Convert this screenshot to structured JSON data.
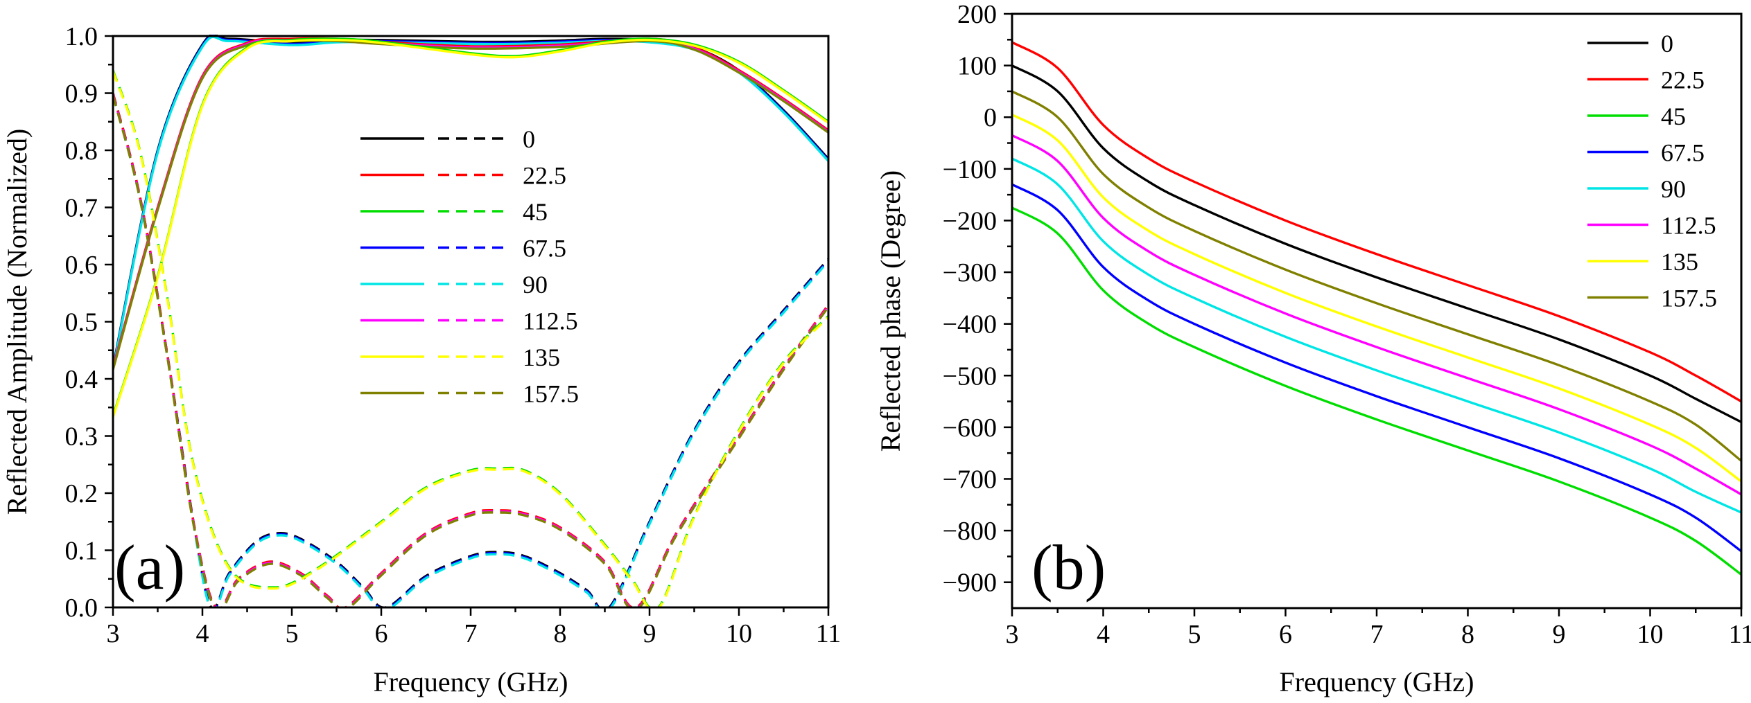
{
  "chart_data": [
    {
      "type": "line",
      "panel": "(a)",
      "xlabel": "Frequency (GHz)",
      "ylabel": "Reflected Amplitude (Normalized)",
      "xlim": [
        3,
        11
      ],
      "ylim": [
        0,
        1.0
      ],
      "x_ticks": [
        "3",
        "4",
        "5",
        "6",
        "7",
        "8",
        "9",
        "10",
        "11"
      ],
      "y_ticks": [
        "0.0",
        "0.1",
        "0.2",
        "0.3",
        "0.4",
        "0.5",
        "0.6",
        "0.7",
        "0.8",
        "0.9",
        "1.0"
      ],
      "legend": {
        "position": "center",
        "styles": [
          "solid",
          "dashed"
        ],
        "entries": [
          "0",
          "22.5",
          "45",
          "67.5",
          "90",
          "112.5",
          "135",
          "157.5"
        ]
      },
      "colors": [
        "#000000",
        "#ff0000",
        "#00dd00",
        "#0000ff",
        "#00e5e5",
        "#ff00ff",
        "#ffff00",
        "#808000"
      ],
      "series": [
        {
          "name": "solid group A (0, 67.5, 90)",
          "style": "solid",
          "colors": [
            "#000000",
            "#0000ff",
            "#00e5e5"
          ],
          "x": [
            3,
            3.5,
            4,
            4.3,
            5,
            5.5,
            6,
            7,
            7.5,
            8,
            8.5,
            9,
            9.5,
            10,
            10.5,
            11
          ],
          "y": [
            0.42,
            0.8,
            0.985,
            0.995,
            0.988,
            0.993,
            0.993,
            0.99,
            0.99,
            0.992,
            0.995,
            0.993,
            0.98,
            0.94,
            0.87,
            0.785
          ]
        },
        {
          "name": "solid group B (22.5, 112.5, 157.5)",
          "style": "solid",
          "colors": [
            "#ff0000",
            "#ff00ff",
            "#808000"
          ],
          "x": [
            3,
            3.5,
            4,
            4.5,
            5,
            5.5,
            6,
            7,
            8,
            9,
            9.5,
            10,
            10.5,
            11
          ],
          "y": [
            0.42,
            0.7,
            0.93,
            0.988,
            0.995,
            0.995,
            0.99,
            0.982,
            0.985,
            0.995,
            0.98,
            0.94,
            0.89,
            0.835
          ]
        },
        {
          "name": "solid group C (45, 135)",
          "style": "solid",
          "colors": [
            "#00dd00",
            "#ffff00"
          ],
          "x": [
            3,
            3.5,
            4,
            4.5,
            5,
            5.5,
            6,
            7,
            7.5,
            8,
            8.5,
            9,
            9.5,
            10,
            10.5,
            11
          ],
          "y": [
            0.335,
            0.58,
            0.88,
            0.98,
            0.993,
            0.995,
            0.99,
            0.97,
            0.965,
            0.975,
            0.99,
            0.995,
            0.985,
            0.955,
            0.905,
            0.85
          ]
        },
        {
          "name": "dashed group A (0, 67.5, 90)",
          "style": "dashed",
          "colors": [
            "#000000",
            "#0000ff",
            "#00e5e5"
          ],
          "x": [
            3,
            3.3,
            3.6,
            3.9,
            4.1,
            4.3,
            4.6,
            4.85,
            5.1,
            5.5,
            5.8,
            6.05,
            6.5,
            7,
            7.3,
            7.6,
            8,
            8.3,
            8.55,
            9,
            9.5,
            10,
            10.5,
            11
          ],
          "y": [
            0.9,
            0.72,
            0.45,
            0.15,
            0.0,
            0.06,
            0.115,
            0.13,
            0.12,
            0.08,
            0.035,
            0.0,
            0.055,
            0.09,
            0.097,
            0.09,
            0.06,
            0.03,
            0.0,
            0.15,
            0.31,
            0.43,
            0.52,
            0.61
          ]
        },
        {
          "name": "dashed group B (22.5, 112.5, 157.5)",
          "style": "dashed",
          "colors": [
            "#ff0000",
            "#ff00ff",
            "#808000"
          ],
          "x": [
            3,
            3.3,
            3.6,
            3.9,
            4.15,
            4.4,
            4.75,
            5.1,
            5.4,
            5.6,
            6,
            6.5,
            7,
            7.3,
            7.6,
            8,
            8.5,
            8.85,
            9.3,
            10,
            10.5,
            11
          ],
          "y": [
            0.9,
            0.72,
            0.45,
            0.15,
            0.0,
            0.05,
            0.08,
            0.06,
            0.02,
            0.0,
            0.06,
            0.13,
            0.165,
            0.17,
            0.165,
            0.14,
            0.08,
            0.0,
            0.13,
            0.3,
            0.42,
            0.53
          ]
        },
        {
          "name": "dashed group C (45, 135)",
          "style": "dashed",
          "colors": [
            "#00dd00",
            "#ffff00"
          ],
          "x": [
            3,
            3.3,
            3.6,
            3.9,
            4.3,
            4.8,
            5.3,
            6,
            6.5,
            7,
            7.3,
            7.6,
            8,
            8.5,
            8.8,
            9.1,
            9.5,
            10,
            10.5,
            11
          ],
          "y": [
            0.94,
            0.8,
            0.55,
            0.25,
            0.07,
            0.035,
            0.07,
            0.15,
            0.21,
            0.24,
            0.243,
            0.24,
            0.2,
            0.11,
            0.05,
            0.0,
            0.16,
            0.31,
            0.43,
            0.51
          ]
        }
      ]
    },
    {
      "type": "line",
      "panel": "(b)",
      "xlabel": "Frequency (GHz)",
      "ylabel": "Reflected phase (Degree)",
      "xlim": [
        3,
        11
      ],
      "ylim": [
        -950,
        200
      ],
      "x_ticks": [
        "3",
        "4",
        "5",
        "6",
        "7",
        "8",
        "9",
        "10",
        "11"
      ],
      "y_ticks": [
        "200",
        "100",
        "0",
        "−100",
        "−200",
        "−300",
        "−400",
        "−500",
        "−600",
        "−700",
        "−800",
        "−900"
      ],
      "legend": {
        "position": "top-right",
        "entries": [
          "0",
          "22.5",
          "45",
          "67.5",
          "90",
          "112.5",
          "135",
          "157.5"
        ]
      },
      "colors": [
        "#000000",
        "#ff0000",
        "#00dd00",
        "#0000ff",
        "#00e5e5",
        "#ff00ff",
        "#ffff00",
        "#808000"
      ],
      "x": [
        3,
        3.5,
        4,
        4.5,
        5,
        6,
        7,
        8,
        9,
        10,
        10.5,
        11
      ],
      "base_shape": [
        0,
        -50,
        -160,
        -225,
        -270,
        -345,
        -410,
        -470,
        -530,
        -600,
        -645,
        -700
      ],
      "series": [
        {
          "name": "0",
          "values": [
            100,
            50,
            -60,
            -125,
            -170,
            -245,
            -310,
            -370,
            -430,
            -500,
            -545,
            -590
          ]
        },
        {
          "name": "22.5",
          "values": [
            145,
            95,
            -15,
            -80,
            -125,
            -200,
            -265,
            -325,
            -385,
            -455,
            -500,
            -550
          ]
        },
        {
          "name": "45",
          "values": [
            -175,
            -225,
            -335,
            -400,
            -445,
            -520,
            -585,
            -645,
            -705,
            -775,
            -820,
            -885
          ]
        },
        {
          "name": "67.5",
          "values": [
            -130,
            -180,
            -290,
            -355,
            -400,
            -475,
            -540,
            -600,
            -660,
            -730,
            -775,
            -840
          ]
        },
        {
          "name": "90",
          "values": [
            -80,
            -130,
            -240,
            -305,
            -350,
            -425,
            -490,
            -550,
            -610,
            -680,
            -725,
            -765
          ]
        },
        {
          "name": "112.5",
          "values": [
            -35,
            -85,
            -195,
            -260,
            -305,
            -380,
            -445,
            -505,
            -565,
            -635,
            -680,
            -730
          ]
        },
        {
          "name": "135",
          "values": [
            5,
            -45,
            -155,
            -220,
            -265,
            -340,
            -405,
            -465,
            -525,
            -595,
            -640,
            -705
          ]
        },
        {
          "name": "157.5",
          "values": [
            50,
            0,
            -110,
            -175,
            -220,
            -295,
            -360,
            -420,
            -480,
            -550,
            -595,
            -665
          ]
        }
      ]
    }
  ]
}
